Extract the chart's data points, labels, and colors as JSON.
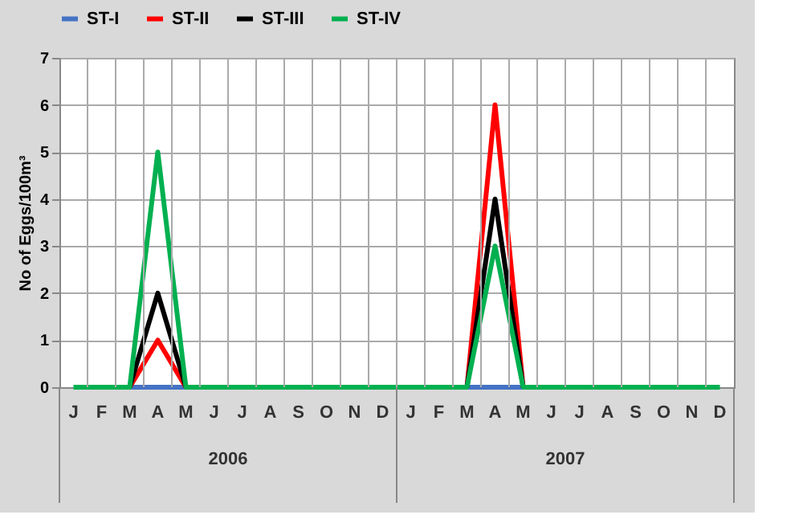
{
  "chart_data": {
    "type": "line",
    "ylabel": "No of Eggs/100m³",
    "categories": [
      "J",
      "F",
      "M",
      "A",
      "M",
      "J",
      "J",
      "A",
      "S",
      "O",
      "N",
      "D",
      "J",
      "F",
      "M",
      "A",
      "M",
      "J",
      "J",
      "A",
      "S",
      "O",
      "N",
      "D"
    ],
    "series": [
      {
        "name": "ST-I",
        "color": "#4472c4",
        "values": [
          null,
          null,
          0,
          0,
          0,
          null,
          null,
          null,
          null,
          null,
          null,
          null,
          null,
          null,
          0,
          0,
          0,
          null,
          null,
          null,
          null,
          null,
          null,
          null
        ]
      },
      {
        "name": "ST-II",
        "color": "#ff0000",
        "values": [
          null,
          null,
          0,
          1,
          0,
          null,
          null,
          null,
          null,
          null,
          null,
          null,
          null,
          null,
          0,
          6,
          0,
          null,
          null,
          null,
          null,
          null,
          null,
          null
        ]
      },
      {
        "name": "ST-III",
        "color": "#000000",
        "values": [
          null,
          null,
          0,
          2,
          0,
          null,
          null,
          null,
          null,
          null,
          null,
          null,
          null,
          null,
          0,
          4,
          0,
          null,
          null,
          null,
          null,
          null,
          null,
          null
        ]
      },
      {
        "name": "ST-IV",
        "color": "#00b050",
        "values": [
          0,
          0,
          0,
          5,
          0,
          0,
          0,
          0,
          0,
          0,
          0,
          0,
          0,
          0,
          0,
          3,
          0,
          0,
          0,
          0,
          0,
          0,
          0,
          0
        ]
      }
    ],
    "ylim": [
      0,
      7
    ],
    "yticks": [
      0,
      1,
      2,
      3,
      4,
      5,
      6,
      7
    ],
    "grid": true,
    "legend": "top",
    "marker": "none",
    "line_style": "solid",
    "annotations": [
      "2006",
      "2007"
    ]
  }
}
